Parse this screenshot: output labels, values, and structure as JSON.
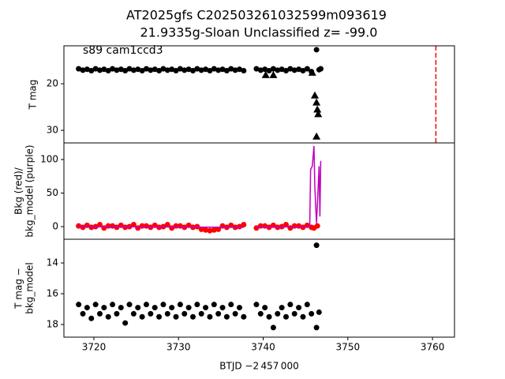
{
  "chart_data": [
    {
      "type": "scatter",
      "title": "AT2025gfs  C202503261032599m093619",
      "subtitle": "21.9335g-Sloan Unclassified z= -99.0",
      "annotation": "s89 cam1ccd3",
      "ylabel": [
        "T mag"
      ],
      "xlim": [
        3716.46,
        3762.6
      ],
      "ylim": [
        32.7,
        11.86
      ],
      "yticks": [
        20,
        30
      ],
      "vlines": [
        {
          "x": 3760.4,
          "color": "#ff0000",
          "style": "dashed"
        }
      ],
      "series": [
        {
          "marker": "o",
          "color": "#000000",
          "x": [
            3718.2,
            3718.7,
            3719.2,
            3719.7,
            3720.2,
            3720.7,
            3721.2,
            3721.7,
            3722.2,
            3722.7,
            3723.2,
            3723.7,
            3724.2,
            3724.7,
            3725.2,
            3725.7,
            3726.2,
            3726.7,
            3727.2,
            3727.7,
            3728.2,
            3728.7,
            3729.2,
            3729.7,
            3730.2,
            3730.7,
            3731.2,
            3731.7,
            3732.2,
            3732.7,
            3733.2,
            3733.7,
            3734.2,
            3734.7,
            3735.2,
            3735.7,
            3736.2,
            3736.7,
            3737.2,
            3737.7,
            3739.2,
            3739.7,
            3740.2,
            3740.7,
            3741.2,
            3741.7,
            3742.2,
            3742.7,
            3743.2,
            3743.7,
            3744.2,
            3744.7,
            3745.2,
            3745.7,
            3746.3,
            3746.6,
            3746.8
          ],
          "values": [
            16.8,
            17.1,
            16.9,
            17.2,
            16.8,
            17.1,
            16.9,
            17.2,
            16.8,
            17.1,
            16.9,
            17.2,
            16.8,
            17.1,
            16.9,
            17.2,
            16.8,
            17.1,
            16.9,
            17.2,
            16.8,
            17.1,
            16.9,
            17.2,
            16.8,
            17.1,
            16.9,
            17.2,
            16.8,
            17.1,
            16.9,
            17.2,
            16.8,
            17.1,
            16.9,
            17.2,
            16.8,
            17.1,
            16.9,
            17.2,
            16.8,
            17.1,
            16.9,
            17.2,
            16.8,
            17.1,
            16.9,
            17.2,
            16.8,
            17.1,
            16.9,
            17.2,
            16.8,
            17.4,
            12.7,
            17.0,
            16.8
          ]
        },
        {
          "marker": "^",
          "color": "#000000",
          "x": [
            3740.3,
            3741.2,
            3745.8,
            3746.1,
            3746.3,
            3746.4,
            3746.5,
            3746.3
          ],
          "values": [
            18.1,
            18.1,
            17.6,
            22.5,
            24.0,
            25.5,
            26.5,
            31.3
          ]
        }
      ]
    },
    {
      "type": "scatter",
      "ylabel": [
        "Bkg (red)/",
        "bkg_model (purple)"
      ],
      "xlim": [
        3716.46,
        3762.6
      ],
      "ylim": [
        -18.8,
        124.7
      ],
      "yticks": [
        0,
        50,
        100
      ],
      "series": [
        {
          "marker": "o",
          "color": "#ff0000",
          "x": [
            3718.2,
            3718.7,
            3719.2,
            3719.7,
            3720.2,
            3720.7,
            3721.2,
            3721.7,
            3722.2,
            3722.7,
            3723.2,
            3723.7,
            3724.2,
            3724.7,
            3725.2,
            3725.7,
            3726.2,
            3726.7,
            3727.2,
            3727.7,
            3728.2,
            3728.7,
            3729.2,
            3729.7,
            3730.2,
            3730.7,
            3731.2,
            3731.7,
            3732.2,
            3732.7,
            3733.2,
            3733.7,
            3734.2,
            3734.7,
            3735.2,
            3735.7,
            3736.2,
            3736.7,
            3737.2,
            3737.7,
            3739.2,
            3739.7,
            3740.2,
            3740.7,
            3741.2,
            3741.7,
            3742.2,
            3742.7,
            3743.2,
            3743.7,
            3744.2,
            3744.7,
            3745.2,
            3745.7,
            3746.0,
            3746.4
          ],
          "values": [
            1,
            -1,
            2,
            -1,
            0,
            3,
            -2,
            1,
            1,
            -1,
            2,
            -1,
            0,
            3,
            -2,
            1,
            1,
            -1,
            2,
            -1,
            0,
            3,
            -2,
            1,
            1,
            -1,
            2,
            -1,
            0,
            -4,
            -5,
            -6,
            -5,
            -4,
            1,
            -1,
            2,
            -1,
            0,
            3,
            -2,
            1,
            1,
            -1,
            2,
            -1,
            0,
            3,
            -2,
            1,
            1,
            -1,
            2,
            -1,
            -2,
            1
          ]
        },
        {
          "kind": "line",
          "color": "#bf00bf",
          "x": [
            3718.2,
            3737.7,
            3738.5,
            3739.2,
            3745.5,
            3745.6,
            3745.8,
            3746.0,
            3746.1,
            3746.2,
            3746.3,
            3746.5,
            3746.6,
            3746.7,
            3746.8
          ],
          "values": [
            0,
            -1,
            null,
            -1,
            0,
            85,
            90,
            120,
            60,
            30,
            5,
            60,
            90,
            15,
            98
          ]
        }
      ]
    },
    {
      "type": "scatter",
      "ylabel": [
        "T mag −",
        "bkg_model"
      ],
      "xlabel": "BTJD −2 457 000",
      "xlim": [
        3716.46,
        3762.6
      ],
      "ylim": [
        18.82,
        12.46
      ],
      "yticks": [
        14,
        16,
        18
      ],
      "xticks": [
        3720,
        3730,
        3740,
        3750,
        3760
      ],
      "series": [
        {
          "marker": "o",
          "color": "#000000",
          "x": [
            3718.2,
            3718.7,
            3719.2,
            3719.7,
            3720.2,
            3720.7,
            3721.2,
            3721.7,
            3722.2,
            3722.7,
            3723.2,
            3723.7,
            3724.2,
            3724.7,
            3725.2,
            3725.7,
            3726.2,
            3726.7,
            3727.2,
            3727.7,
            3728.2,
            3728.7,
            3729.2,
            3729.7,
            3730.2,
            3730.7,
            3731.2,
            3731.7,
            3732.2,
            3732.7,
            3733.2,
            3733.7,
            3734.2,
            3734.7,
            3735.2,
            3735.7,
            3736.2,
            3736.7,
            3737.2,
            3737.7,
            3739.2,
            3739.7,
            3740.2,
            3740.7,
            3741.2,
            3741.7,
            3742.2,
            3742.7,
            3743.2,
            3743.7,
            3744.2,
            3744.7,
            3745.2,
            3745.7,
            3746.3,
            3746.3,
            3746.6
          ],
          "values": [
            16.7,
            17.3,
            16.9,
            17.6,
            16.7,
            17.3,
            16.9,
            17.5,
            16.7,
            17.3,
            16.9,
            17.9,
            16.7,
            17.3,
            16.9,
            17.5,
            16.7,
            17.3,
            16.9,
            17.5,
            16.7,
            17.3,
            16.9,
            17.5,
            16.7,
            17.3,
            16.9,
            17.5,
            16.7,
            17.3,
            16.9,
            17.5,
            16.7,
            17.3,
            16.9,
            17.5,
            16.7,
            17.3,
            16.9,
            17.5,
            16.7,
            17.3,
            16.9,
            17.5,
            18.2,
            17.3,
            16.9,
            17.5,
            16.7,
            17.3,
            16.9,
            17.5,
            16.7,
            17.3,
            12.85,
            18.2,
            17.2
          ]
        }
      ]
    }
  ]
}
